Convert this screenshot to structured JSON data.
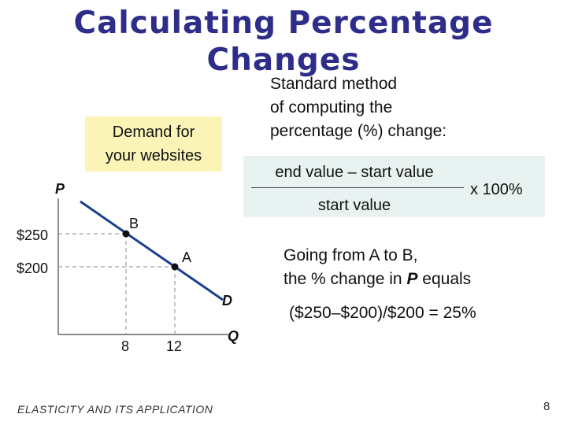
{
  "slide": {
    "title": "Calculating Percentage Changes",
    "footer": "ELASTICITY AND ITS APPLICATION",
    "page_number": "8"
  },
  "method": {
    "lines": [
      "Standard method",
      "of computing the",
      "percentage (%) change:"
    ]
  },
  "demand_box": {
    "lines": [
      "Demand for",
      "your websites"
    ]
  },
  "formula": {
    "numerator": "end value – start value",
    "denominator": "start value",
    "multiplier": "x 100%"
  },
  "explanation": {
    "line1": "Going from A to B,",
    "line2_pre": "the % change in ",
    "line2_var": "P",
    "line2_post": " equals",
    "result": "($250–$200)/$200 = 25%"
  },
  "graph": {
    "y_axis_label": "P",
    "x_axis_label": "Q",
    "curve_label": "D",
    "y_ticks": [
      "$250",
      "$200"
    ],
    "x_ticks": [
      "8",
      "12"
    ],
    "points": [
      {
        "label": "B",
        "q": 8,
        "p": 250
      },
      {
        "label": "A",
        "q": 12,
        "p": 200
      }
    ],
    "curve_color": "#1a3f8f"
  }
}
